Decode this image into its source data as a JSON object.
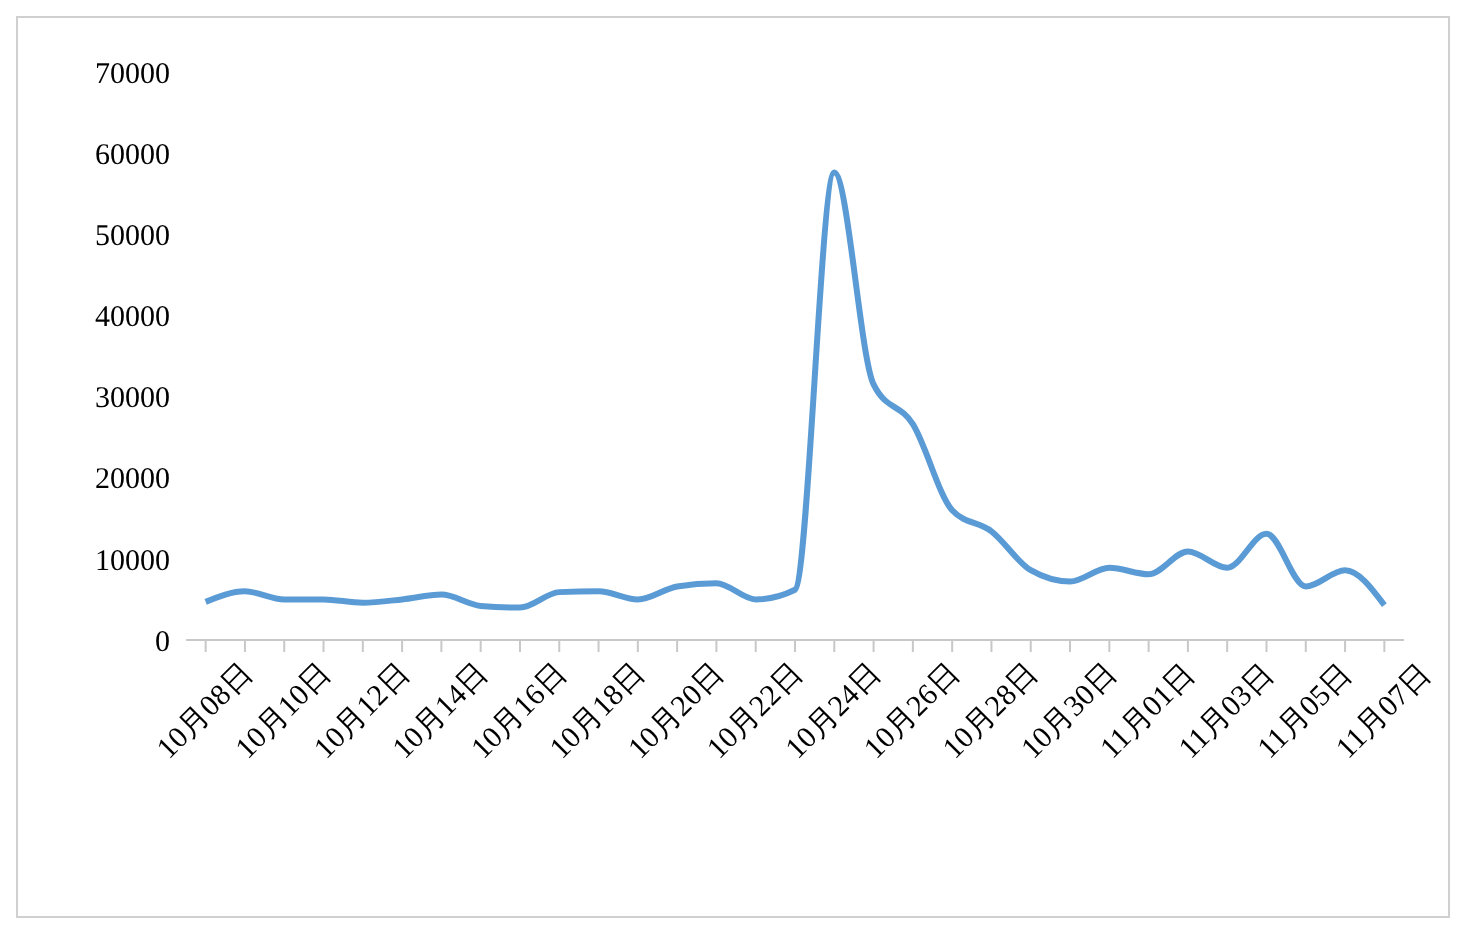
{
  "chart_data": {
    "type": "line",
    "categories": [
      "10月08日",
      null,
      "10月10日",
      null,
      "10月12日",
      null,
      "10月14日",
      null,
      "10月16日",
      null,
      "10月18日",
      null,
      "10月20日",
      null,
      "10月22日",
      null,
      "10月24日",
      null,
      "10月26日",
      null,
      "10月28日",
      null,
      "10月30日",
      null,
      "11月01日",
      null,
      "11月03日",
      null,
      "11月05日",
      null,
      "11月07日"
    ],
    "series": [
      {
        "color": "#5b9bd5",
        "values": [
          4700,
          6000,
          5000,
          5000,
          4600,
          5000,
          5600,
          4200,
          4000,
          5900,
          6000,
          5000,
          6600,
          7000,
          5000,
          6200,
          57600,
          31500,
          26600,
          16000,
          13400,
          8600,
          7200,
          8900,
          8100,
          10900,
          8900,
          13100,
          6600,
          8600,
          4300
        ]
      }
    ],
    "ylim": [
      0,
      70000
    ],
    "yticks": [
      0,
      10000,
      20000,
      30000,
      40000,
      50000,
      60000,
      70000
    ],
    "grid": false,
    "legend": false,
    "marker": "none",
    "line_style": "solid"
  }
}
